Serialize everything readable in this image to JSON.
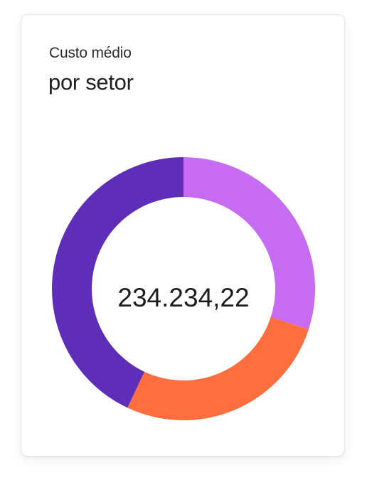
{
  "card": {
    "title": "Custo médio",
    "subtitle": "por setor"
  },
  "chart_data": {
    "type": "pie",
    "center_label": "234.234,22",
    "slices": [
      {
        "value": 30,
        "color": "#C76CF2"
      },
      {
        "value": 27,
        "color": "#FF6E3E"
      },
      {
        "value": 43,
        "color": "#5F2EB8"
      }
    ],
    "start": "top",
    "direction": "clockwise"
  }
}
